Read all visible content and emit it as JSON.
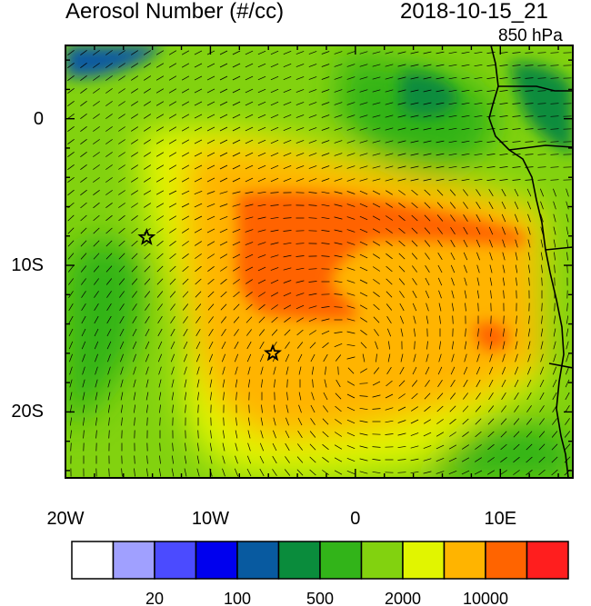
{
  "title": "Aerosol Number (#/cc)",
  "datetime": "2018-10-15_21",
  "level": "850 hPa",
  "lat_axis": {
    "ticks": [
      {
        "lat": 0,
        "label": "0"
      },
      {
        "lat": -10,
        "label": "10S"
      },
      {
        "lat": -20,
        "label": "20S"
      }
    ]
  },
  "lon_axis": {
    "ticks": [
      {
        "lon": -20,
        "label": "20W"
      },
      {
        "lon": -10,
        "label": "10W"
      },
      {
        "lon": 0,
        "label": "0"
      },
      {
        "lon": 10,
        "label": "10E"
      }
    ]
  },
  "domain": {
    "lon_min": -20,
    "lon_max": 15,
    "lat_min": -24.5,
    "lat_max": 5
  },
  "colorbar": {
    "colors": [
      "#ffffff",
      "#a0a0ff",
      "#4b4bff",
      "#0000ee",
      "#085aa0",
      "#0a8c3c",
      "#32b419",
      "#82d20f",
      "#e1f500",
      "#ffb400",
      "#ff6400",
      "#ff1e1e"
    ],
    "labels": [
      {
        "after_box": 1,
        "text": "20"
      },
      {
        "after_box": 3,
        "text": "100"
      },
      {
        "after_box": 5,
        "text": "500"
      },
      {
        "after_box": 7,
        "text": "2000"
      },
      {
        "after_box": 9,
        "text": "10000"
      }
    ]
  },
  "markers": [
    {
      "name": "star-marker-1",
      "lon": -14.4,
      "lat": -8.1
    },
    {
      "name": "star-marker-2",
      "lon": -5.7,
      "lat": -16.0
    }
  ]
}
